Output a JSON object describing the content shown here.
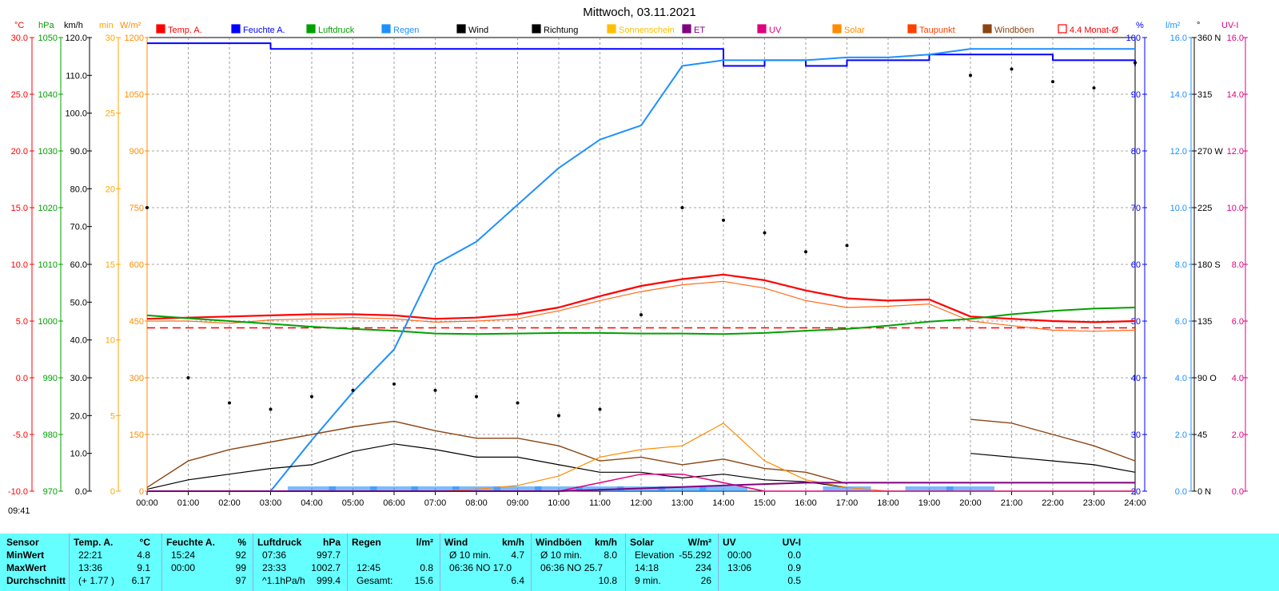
{
  "title": "Mittwoch, 03.11.2021",
  "legend": [
    {
      "label": "Temp. A.",
      "color": "#ff0000"
    },
    {
      "label": "Feuchte A.",
      "color": "#0000ff"
    },
    {
      "label": "Luftdruck",
      "color": "#00a000"
    },
    {
      "label": "Regen",
      "color": "#1e90ff"
    },
    {
      "label": "Wind",
      "color": "#000000"
    },
    {
      "label": "Richtung",
      "color": "#000000"
    },
    {
      "label": "Sonnenschein",
      "color": "#ffbf00"
    },
    {
      "label": "ET",
      "color": "#800080"
    },
    {
      "label": "UV",
      "color": "#e0007f"
    },
    {
      "label": "Solar",
      "color": "#ff8c00"
    },
    {
      "label": "Taupunkt",
      "color": "#ff4000"
    },
    {
      "label": "Windböen",
      "color": "#8b4513"
    },
    {
      "label": "4.4 Monat-Ø",
      "color": "#ff0000"
    }
  ],
  "axis_units": {
    "temp": "°C",
    "pressure": "hPa",
    "wind": "km/h",
    "sun": "min",
    "solar": "W/m²",
    "humidity": "%",
    "rain": "l/m²",
    "dir": "°",
    "uvi": "UV-I"
  },
  "axis_ticks": {
    "temp": [
      "30.0",
      "25.0",
      "20.0",
      "15.0",
      "10.0",
      "5.0",
      "0.0",
      "-5.0",
      "-10.0"
    ],
    "pressure": [
      "1050",
      "1040",
      "1030",
      "1020",
      "1010",
      "1000",
      "990",
      "980",
      "970"
    ],
    "wind": [
      "120.0",
      "110.0",
      "100.0",
      "90.0",
      "80.0",
      "70.0",
      "60.0",
      "50.0",
      "40.0",
      "30.0",
      "20.0",
      "10.0",
      "0.0"
    ],
    "sun": [
      "30",
      "25",
      "20",
      "15",
      "10",
      "5",
      "0"
    ],
    "solar": [
      "1200",
      "1050",
      "900",
      "750",
      "600",
      "450",
      "300",
      "150",
      "0"
    ],
    "humidity": [
      "100",
      "90",
      "80",
      "70",
      "60",
      "50",
      "40",
      "30",
      "20"
    ],
    "rain": [
      "16.0",
      "14.0",
      "12.0",
      "10.0",
      "8.0",
      "6.0",
      "4.0",
      "2.0",
      "0.0"
    ],
    "dir": [
      "360 N",
      "315",
      "270 W",
      "225",
      "180 S",
      "135",
      "90 O",
      "45",
      "0 N"
    ],
    "uvi": [
      "16.0",
      "14.0",
      "12.0",
      "10.0",
      "8.0",
      "6.0",
      "4.0",
      "2.0",
      "0.0"
    ]
  },
  "x_ticks": [
    "00:00",
    "01:00",
    "02:00",
    "03:00",
    "04:00",
    "05:00",
    "06:00",
    "07:00",
    "08:00",
    "09:00",
    "10:00",
    "11:00",
    "12:00",
    "13:00",
    "14:00",
    "15:00",
    "16:00",
    "17:00",
    "18:00",
    "19:00",
    "20:00",
    "21:00",
    "22:00",
    "23:00",
    "24:00"
  ],
  "time_marker": "09:41",
  "chart_data": {
    "type": "line",
    "x": [
      "00:00",
      "01:00",
      "02:00",
      "03:00",
      "04:00",
      "05:00",
      "06:00",
      "07:00",
      "08:00",
      "09:00",
      "10:00",
      "11:00",
      "12:00",
      "13:00",
      "14:00",
      "15:00",
      "16:00",
      "17:00",
      "18:00",
      "19:00",
      "20:00",
      "21:00",
      "22:00",
      "23:00",
      "24:00"
    ],
    "series": [
      {
        "name": "Temp. A.",
        "unit": "°C",
        "values": [
          5.2,
          5.3,
          5.4,
          5.5,
          5.6,
          5.6,
          5.5,
          5.2,
          5.3,
          5.6,
          6.2,
          7.2,
          8.1,
          8.7,
          9.1,
          8.6,
          7.7,
          7.0,
          6.8,
          6.9,
          5.4,
          5.2,
          5.0,
          4.9,
          5.0
        ]
      },
      {
        "name": "Taupunkt",
        "unit": "°C",
        "values": [
          5.0,
          5.0,
          4.8,
          5.1,
          5.2,
          5.3,
          5.2,
          4.9,
          5.0,
          5.2,
          5.9,
          6.8,
          7.6,
          8.2,
          8.5,
          7.9,
          6.8,
          6.2,
          6.3,
          6.5,
          5.0,
          4.6,
          4.2,
          4.1,
          4.2
        ]
      },
      {
        "name": "Luftdruck",
        "unit": "hPa",
        "values": [
          1001.0,
          1000.5,
          1000.0,
          999.5,
          999.0,
          998.6,
          998.3,
          997.8,
          997.7,
          997.8,
          997.9,
          997.9,
          997.8,
          997.8,
          997.7,
          997.9,
          998.3,
          998.6,
          999.2,
          999.9,
          1000.4,
          1001.2,
          1001.8,
          1002.2,
          1002.4
        ]
      },
      {
        "name": "Feuchte A.",
        "unit": "%",
        "values": [
          99,
          99,
          99,
          98,
          98,
          98,
          98,
          98,
          98,
          98,
          98,
          98,
          98,
          98,
          95,
          96,
          95,
          96,
          96,
          97,
          97,
          97,
          96,
          96,
          95
        ]
      },
      {
        "name": "Regen",
        "unit": "l/m²",
        "values": [
          0.0,
          0.0,
          0.0,
          0.0,
          1.8,
          3.5,
          5.0,
          8.0,
          8.8,
          10.1,
          11.4,
          12.4,
          12.9,
          15.0,
          15.2,
          15.2,
          15.2,
          15.3,
          15.3,
          15.4,
          15.6,
          15.6,
          15.6,
          15.6,
          15.6
        ]
      },
      {
        "name": "Wind",
        "unit": "km/h",
        "values": [
          0.5,
          3.0,
          4.5,
          6.0,
          7.0,
          10.5,
          12.5,
          11.0,
          9.0,
          9.0,
          7.0,
          5.0,
          5.0,
          3.5,
          4.5,
          3.0,
          2.5,
          1.0,
          null,
          null,
          10.0,
          9.0,
          8.0,
          7.0,
          5.0
        ]
      },
      {
        "name": "Windböen",
        "unit": "km/h",
        "values": [
          1.0,
          8.0,
          11.0,
          13.0,
          15.0,
          17.0,
          18.5,
          16.0,
          14.0,
          14.0,
          12.0,
          8.0,
          9.0,
          7.0,
          8.5,
          6.0,
          5.0,
          2.0,
          null,
          null,
          19.0,
          18.0,
          15.0,
          12.0,
          8.0
        ]
      },
      {
        "name": "Solar",
        "unit": "W/m²",
        "values": [
          0,
          0,
          0,
          0,
          0,
          0,
          0,
          0,
          5,
          15,
          40,
          90,
          110,
          120,
          180,
          80,
          30,
          10,
          0,
          0,
          0,
          0,
          0,
          0,
          0
        ]
      },
      {
        "name": "UV",
        "unit": "UV-I",
        "values": [
          0,
          0,
          0,
          0,
          0,
          0,
          0,
          0,
          0,
          0,
          0,
          0.3,
          0.6,
          0.6,
          0.3,
          0,
          0,
          0,
          0,
          0,
          0,
          0,
          0,
          0,
          0
        ]
      },
      {
        "name": "ET",
        "unit": "l/m²",
        "values": [
          0,
          0,
          0,
          0,
          0,
          0,
          0,
          0,
          0,
          0,
          0,
          0.05,
          0.1,
          0.15,
          0.2,
          0.25,
          0.3,
          0.3,
          0.3,
          0.3,
          0.3,
          0.3,
          0.3,
          0.3,
          0.3
        ]
      }
    ],
    "direction_deg": [
      225,
      90,
      70,
      65,
      75,
      80,
      85,
      80,
      75,
      70,
      60,
      65,
      140,
      225,
      215,
      205,
      190,
      195,
      null,
      null,
      330,
      335,
      325,
      320,
      340
    ],
    "monthly_avg_temp": 4.4,
    "ylim": {
      "temp": [
        -10,
        30
      ],
      "pressure": [
        970,
        1050
      ],
      "humidity": [
        20,
        100
      ],
      "rain": [
        0,
        16
      ],
      "wind": [
        0,
        120
      ],
      "solar": [
        0,
        1200
      ]
    }
  },
  "stats": {
    "headers": [
      {
        "name": "Sensor",
        "unit": ""
      },
      {
        "name": "Temp. A.",
        "unit": "°C"
      },
      {
        "name": "Feuchte A.",
        "unit": "%"
      },
      {
        "name": "Luftdruck",
        "unit": "hPa"
      },
      {
        "name": "Regen",
        "unit": "l/m²"
      },
      {
        "name": "Wind",
        "unit": "km/h"
      },
      {
        "name": "Windböen",
        "unit": "km/h"
      },
      {
        "name": "Solar",
        "unit": "W/m²"
      },
      {
        "name": "UV",
        "unit": "UV-I"
      }
    ],
    "rows": [
      {
        "label": "MinWert",
        "cells": [
          [
            "22:21",
            "4.8"
          ],
          [
            "15:24",
            "92"
          ],
          [
            "07:36",
            "997.7"
          ],
          [
            "",
            ""
          ],
          [
            "Ø 10 min.",
            "4.7"
          ],
          [
            "Ø 10 min.",
            "8.0"
          ],
          [
            "Elevation",
            "-55.292"
          ],
          [
            "00:00",
            "0.0"
          ]
        ]
      },
      {
        "label": "MaxWert",
        "cells": [
          [
            "13:36",
            "9.1"
          ],
          [
            "00:00",
            "99"
          ],
          [
            "23:33",
            "1002.7"
          ],
          [
            "12:45",
            "0.8"
          ],
          [
            "06:36   NO 17.0",
            ""
          ],
          [
            "06:36   NO 25.7",
            ""
          ],
          [
            "14:18",
            "234"
          ],
          [
            "13:06",
            "0.9"
          ]
        ]
      },
      {
        "label": "Durchschnitt",
        "cells": [
          [
            "(+ 1.77 )",
            "6.17"
          ],
          [
            "",
            "97"
          ],
          [
            "^1.1hPa/h",
            "999.4"
          ],
          [
            "Gesamt:",
            "15.6"
          ],
          [
            "",
            "6.4"
          ],
          [
            "",
            "10.8"
          ],
          [
            "9 min.",
            "26"
          ],
          [
            "",
            "0.5"
          ]
        ]
      }
    ]
  }
}
